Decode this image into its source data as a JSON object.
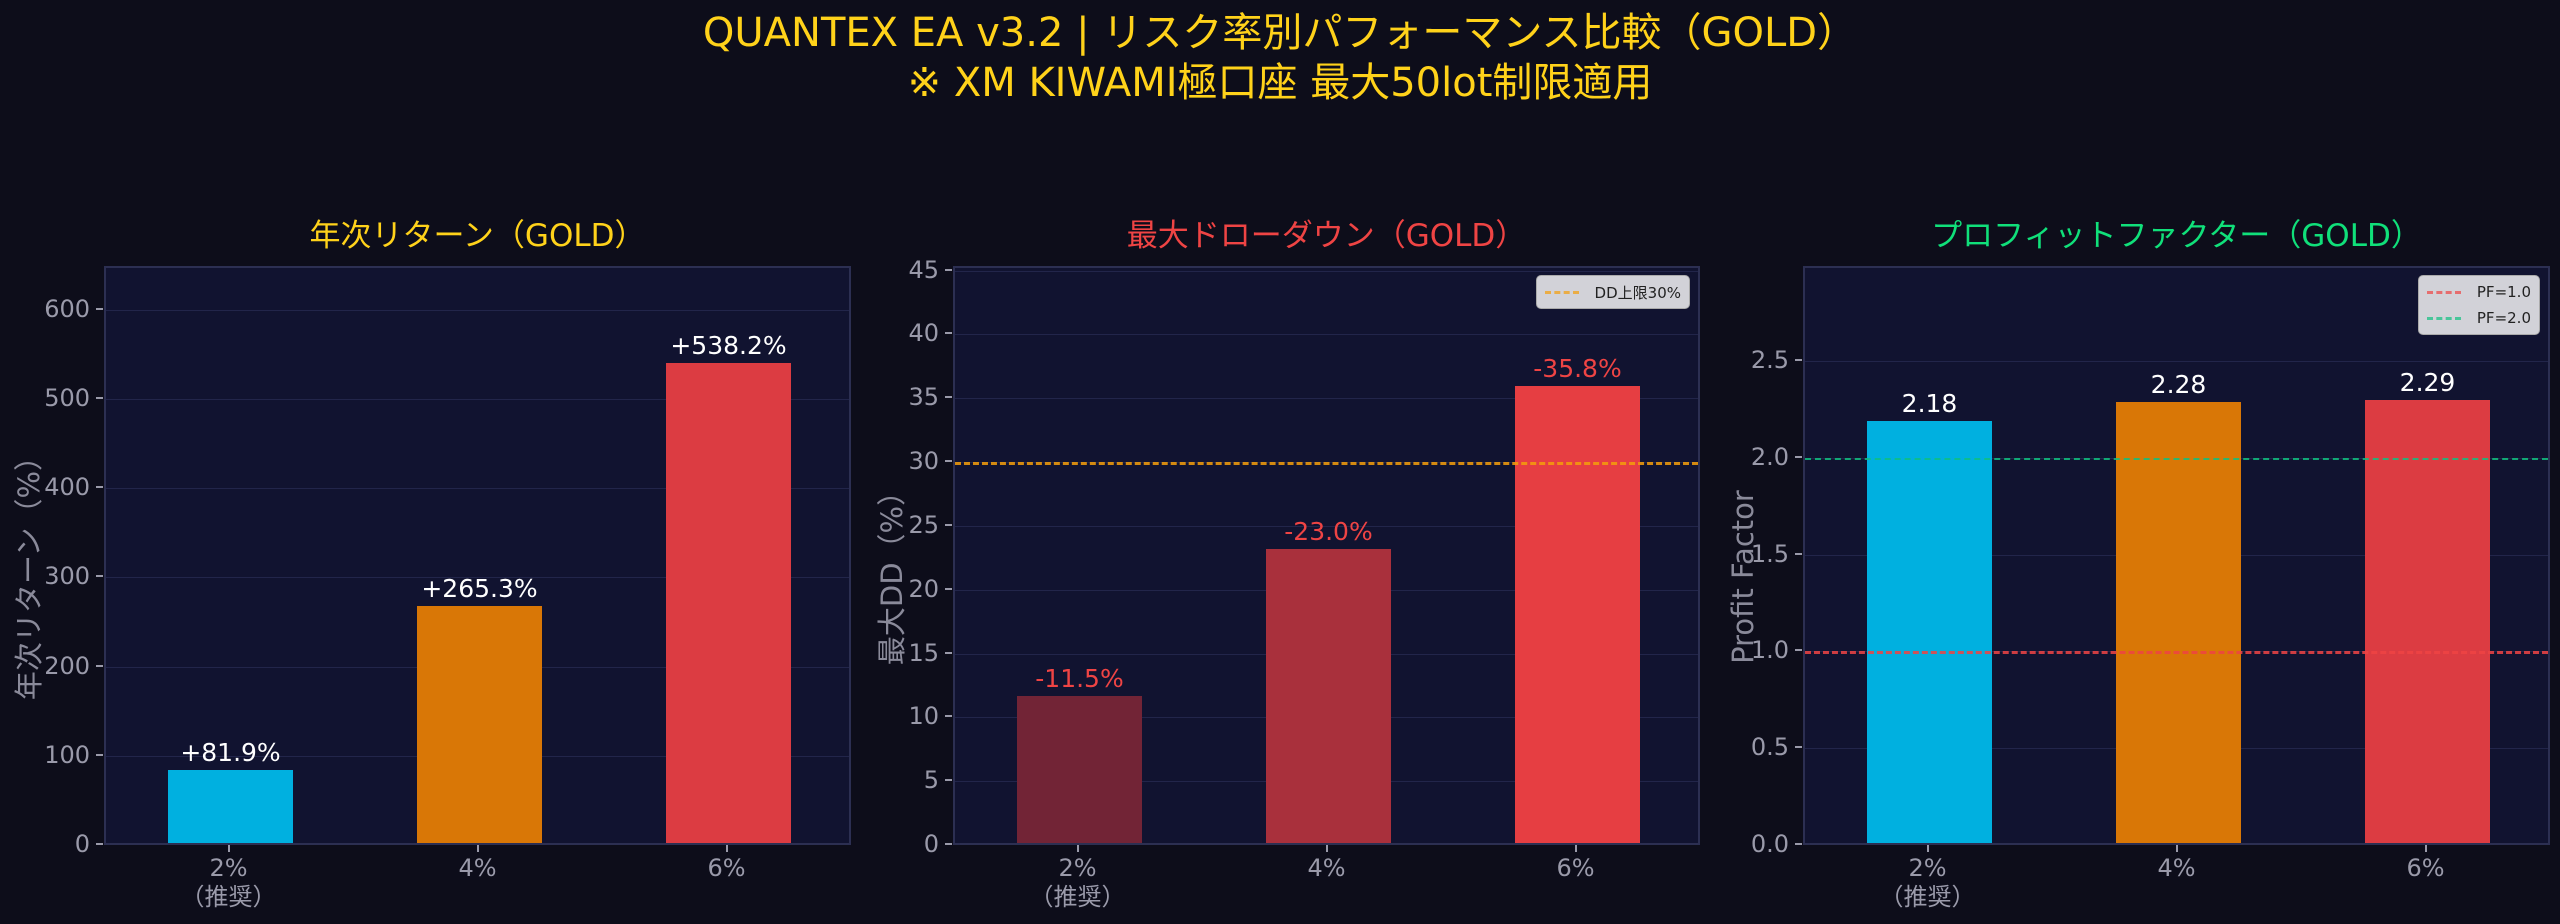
{
  "figure": {
    "title_line1": "QUANTEX EA v3.2 | リスク率別パフォーマンス比較（GOLD）",
    "title_line2": "※ XM KIWAMI極口座 最大50lot制限適用",
    "title_color": "#ffd21a",
    "background": "#0d0d1a",
    "axes_background": "#111330"
  },
  "chart_data": [
    {
      "type": "bar",
      "title": "年次リターン（GOLD）",
      "title_color": "#ffd21a",
      "xlabel": "",
      "ylabel": "年次リターン（%）",
      "categories": [
        "2%\n（推奨）",
        "4%",
        "6%"
      ],
      "category_lines": [
        [
          "2%",
          "（推奨）"
        ],
        [
          "4%"
        ],
        [
          "6%"
        ]
      ],
      "values": [
        81.9,
        265.3,
        538.2
      ],
      "value_labels": [
        "+81.9%",
        "+265.3%",
        "+538.2%"
      ],
      "bar_colors": [
        "#00b0e0",
        "#d97706",
        "#dc3c42"
      ],
      "label_color": "#ffffff",
      "yticks": [
        0,
        100,
        200,
        300,
        400,
        500,
        600
      ],
      "ylim": [
        0,
        647
      ],
      "grid": true,
      "reference_lines": []
    },
    {
      "type": "bar",
      "title": "最大ドローダウン（GOLD）",
      "title_color": "#ef4444",
      "xlabel": "",
      "ylabel": "最大DD（%）",
      "categories": [
        "2%\n（推奨）",
        "4%",
        "6%"
      ],
      "category_lines": [
        [
          "2%",
          "（推奨）"
        ],
        [
          "4%"
        ],
        [
          "6%"
        ]
      ],
      "values": [
        11.5,
        23.0,
        35.8
      ],
      "value_labels": [
        "-11.5%",
        "-23.0%",
        "-35.8%"
      ],
      "bar_colors": [
        "#722436",
        "#a9303c",
        "#e63e42"
      ],
      "label_color": "#ef4444",
      "yticks": [
        0,
        5,
        10,
        15,
        20,
        25,
        30,
        35,
        40,
        45
      ],
      "ylim": [
        0,
        45.2
      ],
      "grid": true,
      "reference_lines": [
        {
          "value": 30,
          "label": "DD上限30%",
          "color": "#f59e0b",
          "style": "dashed"
        }
      ],
      "legend_position": "upper right"
    },
    {
      "type": "bar",
      "title": "プロフィットファクター（GOLD）",
      "title_color": "#10e07a",
      "xlabel": "",
      "ylabel": "Profit Factor",
      "categories": [
        "2%\n（推奨）",
        "4%",
        "6%"
      ],
      "category_lines": [
        [
          "2%",
          "（推奨）"
        ],
        [
          "4%"
        ],
        [
          "6%"
        ]
      ],
      "values": [
        2.18,
        2.28,
        2.29
      ],
      "value_labels": [
        "2.18",
        "2.28",
        "2.29"
      ],
      "bar_colors": [
        "#00b0e0",
        "#d97706",
        "#dc3c42"
      ],
      "label_color": "#ffffff",
      "yticks": [
        0.0,
        0.5,
        1.0,
        1.5,
        2.0,
        2.5
      ],
      "ytick_labels": [
        "0.0",
        "0.5",
        "1.0",
        "1.5",
        "2.0",
        "2.5"
      ],
      "ylim": [
        0,
        2.98
      ],
      "grid": true,
      "reference_lines": [
        {
          "value": 1.0,
          "label": "PF=1.0",
          "color": "#ef4444",
          "style": "dashed"
        },
        {
          "value": 2.0,
          "label": "PF=2.0",
          "color": "#10c080",
          "style": "dashed-thin"
        }
      ],
      "legend_position": "upper right"
    }
  ]
}
